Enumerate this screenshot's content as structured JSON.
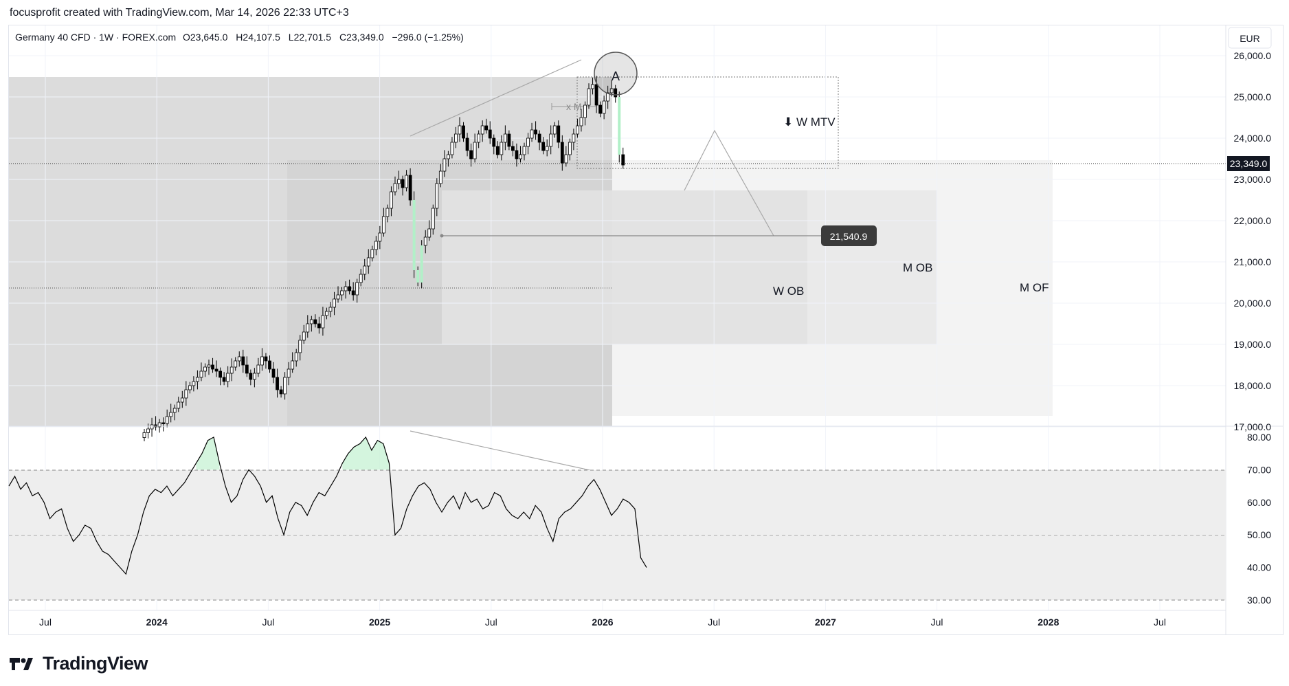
{
  "header": {
    "attribution": "focusprofit created with TradingView.com, Mar 14, 2026 22:33 UTC+3"
  },
  "legend": {
    "symbol": "Germany 40 CFD · 1W · FOREX.com",
    "open_label": "O",
    "open": "23,645.0",
    "high_label": "H",
    "high": "24,107.5",
    "low_label": "L",
    "low": "22,701.5",
    "close_label": "C",
    "close": "23,349.0",
    "change": "−296.0 (−1.25%)"
  },
  "currency_button": "EUR",
  "brand": {
    "name": "TradingView"
  },
  "price_axis": {
    "ticks": [
      "26,000.0",
      "25,000.0",
      "24,000.0",
      "23,000.0",
      "22,000.0",
      "21,000.0",
      "20,000.0",
      "19,000.0",
      "18,000.0",
      "17,000.0"
    ],
    "current_price_label": "23,349.0"
  },
  "rsi_axis": {
    "ticks": [
      "80.00",
      "70.00",
      "60.00",
      "50.00",
      "40.00",
      "30.00"
    ]
  },
  "time_axis": {
    "labels": [
      {
        "text": "Jul",
        "bold": false
      },
      {
        "text": "2024",
        "bold": true
      },
      {
        "text": "Jul",
        "bold": false
      },
      {
        "text": "2025",
        "bold": true
      },
      {
        "text": "Jul",
        "bold": false
      },
      {
        "text": "2026",
        "bold": true
      },
      {
        "text": "Jul",
        "bold": false
      },
      {
        "text": "2027",
        "bold": true
      },
      {
        "text": "Jul",
        "bold": false
      },
      {
        "text": "2028",
        "bold": true
      },
      {
        "text": "Jul",
        "bold": false
      }
    ]
  },
  "annotations": {
    "target_price_label": "21,540.9",
    "w_mtv": "⬇ W MTV",
    "w_ob": "W OB",
    "m_ob": "M OB",
    "m_of": "M OF",
    "marker_a": "A",
    "marker_xm": "x M"
  },
  "colors": {
    "bull": "#ffffff",
    "bear": "#000000",
    "highlight": "#b2f0c8",
    "zone_dark": "#d9d9d9",
    "zone_light": "#f2f2f2",
    "rsi_band": "#eeeeee",
    "rsi_line": "#000000",
    "target_label_bg": "#3b3b3b"
  },
  "chart_data": {
    "type": "candlestick",
    "interval": "1W",
    "ylim": [
      16500,
      26500
    ],
    "close_series": [
      16860,
      16950,
      17050,
      17000,
      17100,
      17080,
      17250,
      17350,
      17450,
      17600,
      17700,
      17900,
      18000,
      18100,
      18200,
      18350,
      18450,
      18500,
      18400,
      18350,
      18200,
      18100,
      18300,
      18450,
      18600,
      18700,
      18500,
      18300,
      18150,
      18300,
      18500,
      18700,
      18600,
      18400,
      18200,
      17900,
      17800,
      18200,
      18400,
      18600,
      18800,
      19100,
      19300,
      19500,
      19600,
      19500,
      19400,
      19700,
      19800,
      19900,
      20100,
      20200,
      20300,
      20400,
      20300,
      20200,
      20500,
      20700,
      20900,
      21100,
      21300,
      21500,
      21700,
      22100,
      22300,
      22700,
      22900,
      23000,
      22800,
      23100,
      22500,
      20800,
      20500,
      21400,
      21600,
      21800,
      22300,
      22900,
      23200,
      23500,
      23600,
      23900,
      24100,
      24300,
      24000,
      23700,
      23500,
      23900,
      24100,
      24300,
      24200,
      24000,
      23800,
      23600,
      23900,
      24100,
      23800,
      23700,
      23500,
      23600,
      23800,
      24000,
      24200,
      24100,
      23900,
      23700,
      23800,
      24100,
      24300,
      23900,
      23400,
      23600,
      23900,
      24100,
      24300,
      24500,
      24800,
      25200,
      25300,
      24800,
      24600,
      24900,
      25100,
      25200,
      25000,
      23600,
      23349
    ],
    "rsi": [
      65,
      68,
      64,
      66,
      62,
      63,
      60,
      55,
      57,
      58,
      52,
      48,
      50,
      53,
      52,
      48,
      45,
      44,
      42,
      40,
      38,
      45,
      50,
      57,
      62,
      64,
      63,
      65,
      62,
      64,
      66,
      69,
      72,
      75,
      79,
      80,
      72,
      65,
      60,
      62,
      67,
      70,
      68,
      65,
      60,
      62,
      55,
      50,
      57,
      60,
      59,
      56,
      60,
      63,
      62,
      65,
      68,
      72,
      75,
      77,
      78,
      80,
      76,
      79,
      78,
      72,
      50,
      52,
      58,
      62,
      65,
      66,
      64,
      60,
      57,
      60,
      62,
      58,
      63,
      60,
      61,
      58,
      59,
      63,
      62,
      58,
      56,
      55,
      57,
      55,
      59,
      57,
      52,
      48,
      55,
      57,
      58,
      60,
      62,
      65,
      67,
      64,
      60,
      56,
      58,
      61,
      60,
      58,
      43,
      40
    ],
    "rsi_levels": {
      "upper": 70,
      "middle": 50,
      "lower": 30
    },
    "target_price": 21540.9,
    "zones": [
      {
        "name": "W MTV",
        "from": 23200,
        "to": 25500
      },
      {
        "name": "W OB",
        "from": 18800,
        "to": 22700
      },
      {
        "name": "M OB",
        "from": 18800,
        "to": 22700
      },
      {
        "name": "M OF",
        "from": 17100,
        "to": 23400
      }
    ]
  }
}
